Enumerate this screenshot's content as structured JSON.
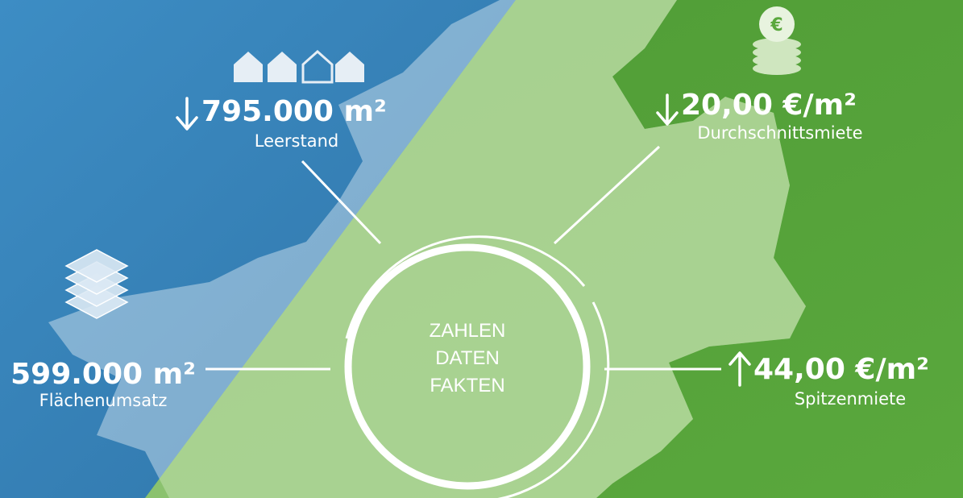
{
  "center": {
    "lines": [
      "ZAHLEN",
      "DATEN",
      "FAKTEN"
    ]
  },
  "stats": [
    {
      "value": "795.000 m²",
      "label": "Leerstand"
    },
    {
      "value": "20,00 €/m²",
      "label": "Durchschnittsmiete"
    },
    {
      "value": "599.000 m²",
      "label": "Flächenumsatz"
    },
    {
      "value": "44,00 €/m²",
      "label": "Spitzenmiete"
    }
  ],
  "coin_symbol": "€"
}
